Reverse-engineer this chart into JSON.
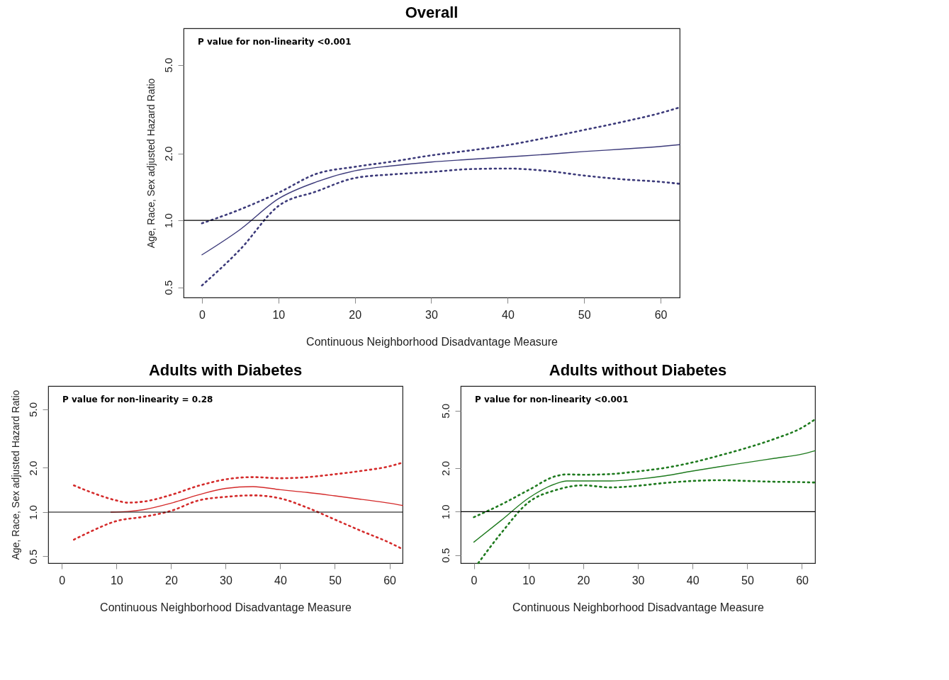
{
  "chart_data": [
    {
      "type": "line",
      "title": "Overall",
      "xlabel": "Continuous Neighborhood Disadvantage Measure",
      "ylabel": "Age, Race, Sex adjusted Hazard Ratio",
      "annotations": [
        "P value for non-linearity <0.001"
      ],
      "log": "y",
      "xlim": [
        -2.4,
        62.5
      ],
      "ylim": [
        0.45,
        7.3
      ],
      "xticks": [
        0,
        10,
        20,
        30,
        40,
        50,
        60
      ],
      "yticks": [
        {
          "value": 0.5,
          "label": "0.5"
        },
        {
          "value": 1,
          "label": "1.0"
        },
        {
          "value": 2,
          "label": "2.0"
        },
        {
          "value": 5,
          "label": "5.0"
        }
      ],
      "ref_lines": [
        {
          "axis": "y",
          "value": 1,
          "color": "#000000"
        }
      ],
      "series": [
        {
          "color": "#3c3a7a",
          "line_style": "solid",
          "x": [
            0,
            5,
            10,
            15,
            20,
            25,
            30,
            35,
            40,
            45,
            50,
            55,
            60,
            62.5
          ],
          "values": [
            0.7,
            0.91,
            1.25,
            1.49,
            1.67,
            1.76,
            1.83,
            1.88,
            1.93,
            1.98,
            2.04,
            2.09,
            2.15,
            2.19
          ]
        },
        {
          "color": "#3c3a7a",
          "line_style": "dotted",
          "x": [
            0,
            5,
            10,
            15,
            20,
            25,
            30,
            35,
            40,
            45,
            50,
            55,
            60,
            62.5
          ],
          "values": [
            0.97,
            1.12,
            1.33,
            1.62,
            1.74,
            1.84,
            1.96,
            2.06,
            2.18,
            2.35,
            2.55,
            2.77,
            3.04,
            3.22
          ]
        },
        {
          "color": "#3c3a7a",
          "line_style": "dotted",
          "x": [
            0,
            5,
            10,
            15,
            20,
            25,
            30,
            35,
            40,
            45,
            50,
            55,
            60,
            62.5
          ],
          "values": [
            0.51,
            0.74,
            1.16,
            1.35,
            1.55,
            1.61,
            1.65,
            1.7,
            1.71,
            1.67,
            1.59,
            1.53,
            1.49,
            1.46
          ]
        }
      ]
    },
    {
      "type": "line",
      "title": "Adults with Diabetes",
      "xlabel": "Continuous Neighborhood Disadvantage Measure",
      "ylabel": "Age, Race, Sex adjusted Hazard Ratio",
      "annotations": [
        "P value for non-linearity = 0.28"
      ],
      "log": "y",
      "xlim": [
        -2.5,
        62.4
      ],
      "ylim": [
        0.45,
        7.2
      ],
      "xticks": [
        0,
        10,
        20,
        30,
        40,
        50,
        60
      ],
      "yticks": [
        {
          "value": 0.5,
          "label": "0.5"
        },
        {
          "value": 1,
          "label": "1.0"
        },
        {
          "value": 2,
          "label": "2.0"
        },
        {
          "value": 5,
          "label": "5.0"
        }
      ],
      "ref_lines": [
        {
          "axis": "y",
          "value": 1,
          "color": "#000000"
        }
      ],
      "series": [
        {
          "color": "#d42a2a",
          "line_style": "solid",
          "x": [
            9,
            12,
            15,
            20,
            25,
            30,
            35,
            40,
            45,
            50,
            55,
            60,
            62.4
          ],
          "values": [
            1.0,
            1.01,
            1.04,
            1.15,
            1.31,
            1.45,
            1.49,
            1.42,
            1.36,
            1.29,
            1.22,
            1.15,
            1.11
          ]
        },
        {
          "color": "#d42a2a",
          "line_style": "dotted",
          "x": [
            2.2,
            5,
            10,
            12,
            15,
            20,
            25,
            30,
            35,
            40,
            45,
            50,
            55,
            60,
            62
          ],
          "values": [
            1.52,
            1.38,
            1.2,
            1.16,
            1.18,
            1.31,
            1.51,
            1.67,
            1.73,
            1.7,
            1.73,
            1.81,
            1.91,
            2.05,
            2.15
          ]
        },
        {
          "color": "#d42a2a",
          "line_style": "dotted",
          "x": [
            2.2,
            5,
            10,
            15,
            20,
            25,
            30,
            35,
            40,
            45,
            50,
            55,
            60,
            62
          ],
          "values": [
            0.65,
            0.73,
            0.87,
            0.93,
            1.02,
            1.2,
            1.27,
            1.3,
            1.24,
            1.07,
            0.89,
            0.74,
            0.62,
            0.57
          ]
        }
      ]
    },
    {
      "type": "line",
      "title": "Adults without Diabetes",
      "xlabel": "Continuous Neighborhood Disadvantage Measure",
      "annotations": [
        "P value for non-linearity <0.001"
      ],
      "log": "y",
      "xlim": [
        -2.4,
        62.4
      ],
      "ylim": [
        0.44,
        7.4
      ],
      "xticks": [
        0,
        10,
        20,
        30,
        40,
        50,
        60
      ],
      "yticks": [
        {
          "value": 0.5,
          "label": "0.5"
        },
        {
          "value": 1,
          "label": "1.0"
        },
        {
          "value": 2,
          "label": "2.0"
        },
        {
          "value": 5,
          "label": "5.0"
        }
      ],
      "ref_lines": [
        {
          "axis": "y",
          "value": 1,
          "color": "#000000"
        }
      ],
      "series": [
        {
          "color": "#1e7a1e",
          "line_style": "solid",
          "x": [
            0,
            5,
            10,
            15,
            17,
            20,
            25,
            30,
            35,
            40,
            45,
            50,
            55,
            60,
            62.4
          ],
          "values": [
            0.615,
            0.87,
            1.24,
            1.56,
            1.63,
            1.63,
            1.63,
            1.68,
            1.77,
            1.91,
            2.05,
            2.19,
            2.34,
            2.5,
            2.64
          ]
        },
        {
          "color": "#1e7a1e",
          "line_style": "dotted",
          "x": [
            0,
            5,
            10,
            15,
            17,
            20,
            25,
            30,
            35,
            40,
            45,
            50,
            55,
            60,
            62.4
          ],
          "values": [
            0.915,
            1.12,
            1.41,
            1.76,
            1.81,
            1.8,
            1.82,
            1.9,
            2.01,
            2.19,
            2.45,
            2.77,
            3.19,
            3.81,
            4.35
          ]
        },
        {
          "color": "#1e7a1e",
          "line_style": "dotted",
          "x": [
            0.8,
            5,
            10,
            15,
            20,
            25,
            30,
            35,
            40,
            45,
            50,
            55,
            60,
            62.4
          ],
          "values": [
            0.44,
            0.71,
            1.16,
            1.41,
            1.52,
            1.47,
            1.51,
            1.58,
            1.63,
            1.65,
            1.63,
            1.61,
            1.6,
            1.59
          ]
        }
      ]
    }
  ]
}
